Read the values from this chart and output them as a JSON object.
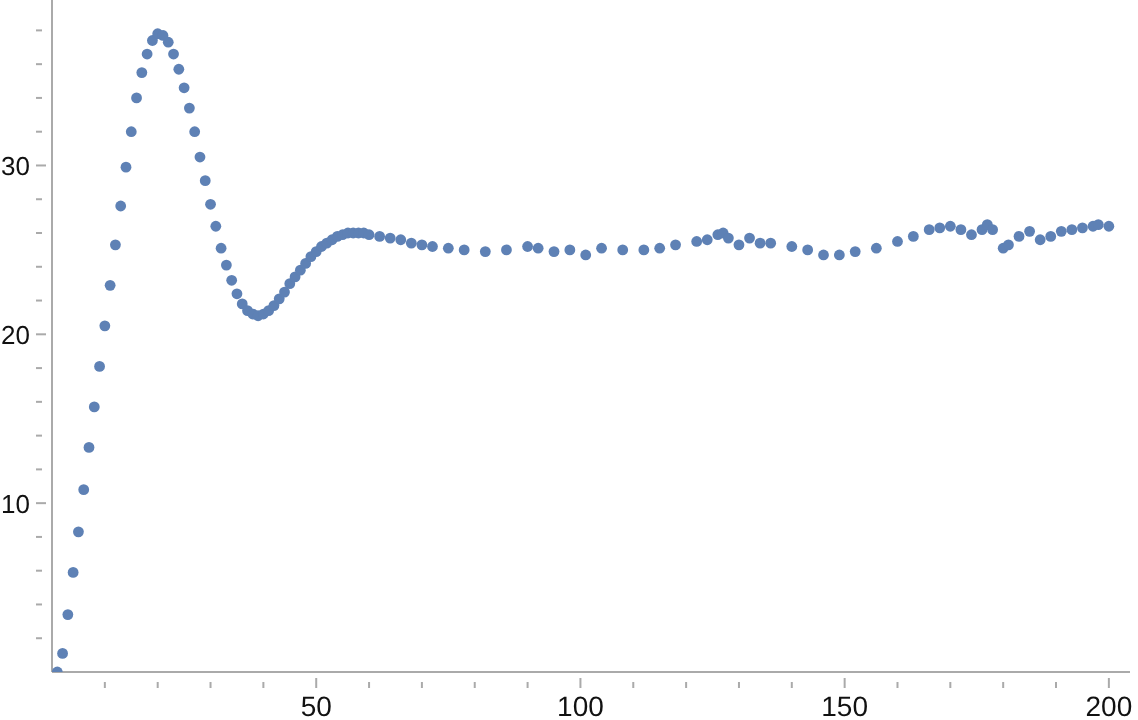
{
  "chart_data": {
    "type": "scatter",
    "marker": "circle",
    "grid": false,
    "xlim": [
      0,
      204
    ],
    "ylim": [
      0,
      39.8
    ],
    "xticks": [
      {
        "value": 10,
        "label": null
      },
      {
        "value": 20,
        "label": null
      },
      {
        "value": 30,
        "label": null
      },
      {
        "value": 40,
        "label": null
      },
      50,
      {
        "value": 60,
        "label": null
      },
      {
        "value": 70,
        "label": null
      },
      {
        "value": 80,
        "label": null
      },
      {
        "value": 90,
        "label": null
      },
      100,
      {
        "value": 110,
        "label": null
      },
      {
        "value": 120,
        "label": null
      },
      {
        "value": 130,
        "label": null
      },
      {
        "value": 140,
        "label": null
      },
      150,
      {
        "value": 160,
        "label": null
      },
      {
        "value": 170,
        "label": null
      },
      {
        "value": 180,
        "label": null
      },
      {
        "value": 190,
        "label": null
      },
      200
    ],
    "yticks": [
      {
        "value": 2,
        "label": null
      },
      {
        "value": 4,
        "label": null
      },
      {
        "value": 6,
        "label": null
      },
      {
        "value": 8,
        "label": null
      },
      10,
      {
        "value": 12,
        "label": null
      },
      {
        "value": 14,
        "label": null
      },
      {
        "value": 16,
        "label": null
      },
      {
        "value": 18,
        "label": null
      },
      20,
      {
        "value": 22,
        "label": null
      },
      {
        "value": 24,
        "label": null
      },
      {
        "value": 26,
        "label": null
      },
      {
        "value": 28,
        "label": null
      },
      30,
      {
        "value": 32,
        "label": null
      },
      {
        "value": 34,
        "label": null
      },
      {
        "value": 36,
        "label": null
      },
      {
        "value": 38,
        "label": null
      }
    ],
    "series": [
      {
        "color": "#5e81b5",
        "x": [
          1,
          2,
          3,
          4,
          5,
          6,
          7,
          8,
          9,
          10,
          11,
          12,
          13,
          14,
          15,
          16,
          17,
          18,
          19,
          20,
          21,
          22,
          23,
          24,
          25,
          26,
          27,
          28,
          29,
          30,
          31,
          32,
          33,
          34,
          35,
          36,
          37,
          38,
          39,
          40,
          41,
          42,
          43,
          44,
          45,
          46,
          47,
          48,
          49,
          50,
          51,
          52,
          53,
          54,
          55,
          56,
          57,
          58,
          59,
          60,
          62,
          64,
          66,
          68,
          70,
          72,
          75,
          78,
          82,
          86,
          90,
          92,
          95,
          98,
          101,
          104,
          108,
          112,
          115,
          118,
          122,
          124,
          126,
          127,
          128,
          130,
          132,
          134,
          136,
          140,
          143,
          146,
          149,
          152,
          156,
          160,
          163,
          166,
          168,
          170,
          172,
          174,
          176,
          177,
          178,
          180,
          181,
          183,
          185,
          187,
          189,
          191,
          193,
          195,
          197,
          198,
          200
        ],
        "values": [
          0,
          1.1,
          3.4,
          5.9,
          8.3,
          10.8,
          13.3,
          15.7,
          18.1,
          20.5,
          22.9,
          25.3,
          27.6,
          29.9,
          32.0,
          34.0,
          35.5,
          36.6,
          37.4,
          37.8,
          37.7,
          37.3,
          36.6,
          35.7,
          34.6,
          33.4,
          32.0,
          30.5,
          29.1,
          27.7,
          26.4,
          25.1,
          24.1,
          23.2,
          22.4,
          21.8,
          21.4,
          21.2,
          21.1,
          21.2,
          21.4,
          21.7,
          22.1,
          22.5,
          23.0,
          23.4,
          23.8,
          24.2,
          24.6,
          24.9,
          25.2,
          25.4,
          25.6,
          25.8,
          25.9,
          26.0,
          26.0,
          26.0,
          26.0,
          25.9,
          25.8,
          25.7,
          25.6,
          25.4,
          25.3,
          25.2,
          25.1,
          25.0,
          24.9,
          25.0,
          25.2,
          25.1,
          24.9,
          25.0,
          24.7,
          25.1,
          25.0,
          25.0,
          25.1,
          25.3,
          25.5,
          25.6,
          25.9,
          26.0,
          25.7,
          25.3,
          25.7,
          25.4,
          25.4,
          25.2,
          25.0,
          24.7,
          24.7,
          24.9,
          25.1,
          25.5,
          25.8,
          26.2,
          26.3,
          26.4,
          26.2,
          25.9,
          26.2,
          26.5,
          26.2,
          25.1,
          25.3,
          25.8,
          26.1,
          25.6,
          25.8,
          26.1,
          26.2,
          26.3,
          26.4,
          26.5,
          26.4
        ]
      }
    ]
  }
}
